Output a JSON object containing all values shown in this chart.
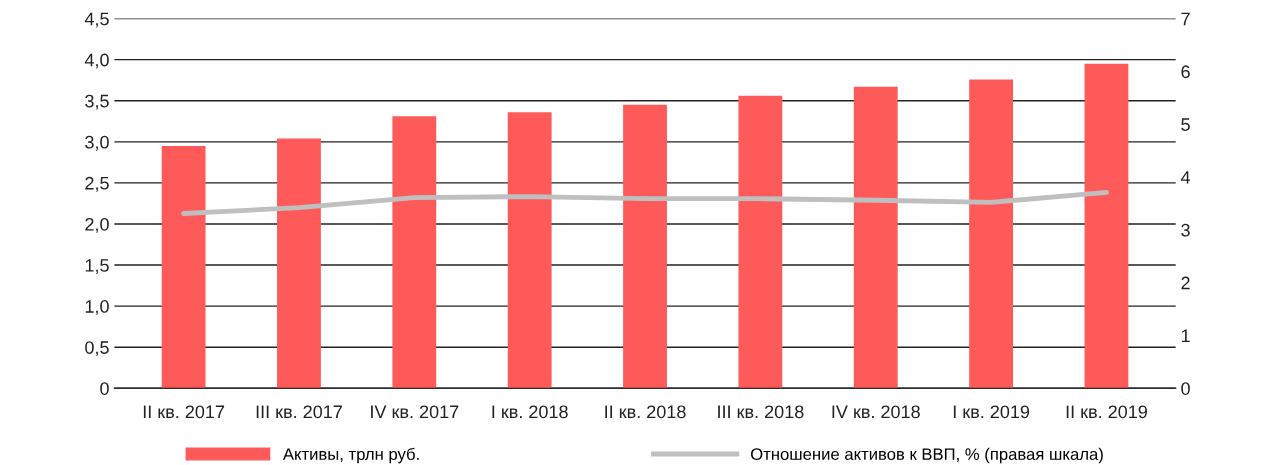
{
  "chart_data": {
    "type": "bar",
    "categories": [
      "II кв. 2017",
      "III кв. 2017",
      "IV кв. 2017",
      "I кв. 2018",
      "II кв. 2018",
      "III кв. 2018",
      "IV кв. 2018",
      "I кв. 2019",
      "II кв. 2019"
    ],
    "series": [
      {
        "name": "Активы, трлн руб.",
        "color": "#ff5a5a",
        "values": [
          2.95,
          3.04,
          3.31,
          3.36,
          3.45,
          3.56,
          3.67,
          3.76,
          3.95
        ]
      },
      {
        "name": "Отношение активов к ВВП, % (правая шкала)",
        "type": "line",
        "axis": "y2",
        "color": "#bfbfbf",
        "values": [
          3.31,
          3.42,
          3.61,
          3.63,
          3.59,
          3.59,
          3.56,
          3.52,
          3.71
        ]
      }
    ],
    "ylim": [
      0,
      4.5
    ],
    "yticks": [
      0,
      {
        "value": 0.5,
        "label": "0,5"
      },
      {
        "value": 1,
        "label": "1,0"
      },
      {
        "value": 1.5,
        "label": "1,5"
      },
      {
        "value": 2,
        "label": "2,0"
      },
      {
        "value": 2.5,
        "label": "2,5"
      },
      {
        "value": 3,
        "label": "3,0"
      },
      {
        "value": 3.5,
        "label": "3,5"
      },
      {
        "value": 4,
        "label": "4,0"
      },
      {
        "value": 4.5,
        "label": "4,5"
      }
    ],
    "y2lim": [
      0,
      7
    ],
    "y2ticks": [
      0,
      1,
      2,
      3,
      4,
      5,
      6,
      7
    ],
    "grid": "y",
    "legend": "bottom",
    "marker": "none",
    "line_style": "solid"
  }
}
